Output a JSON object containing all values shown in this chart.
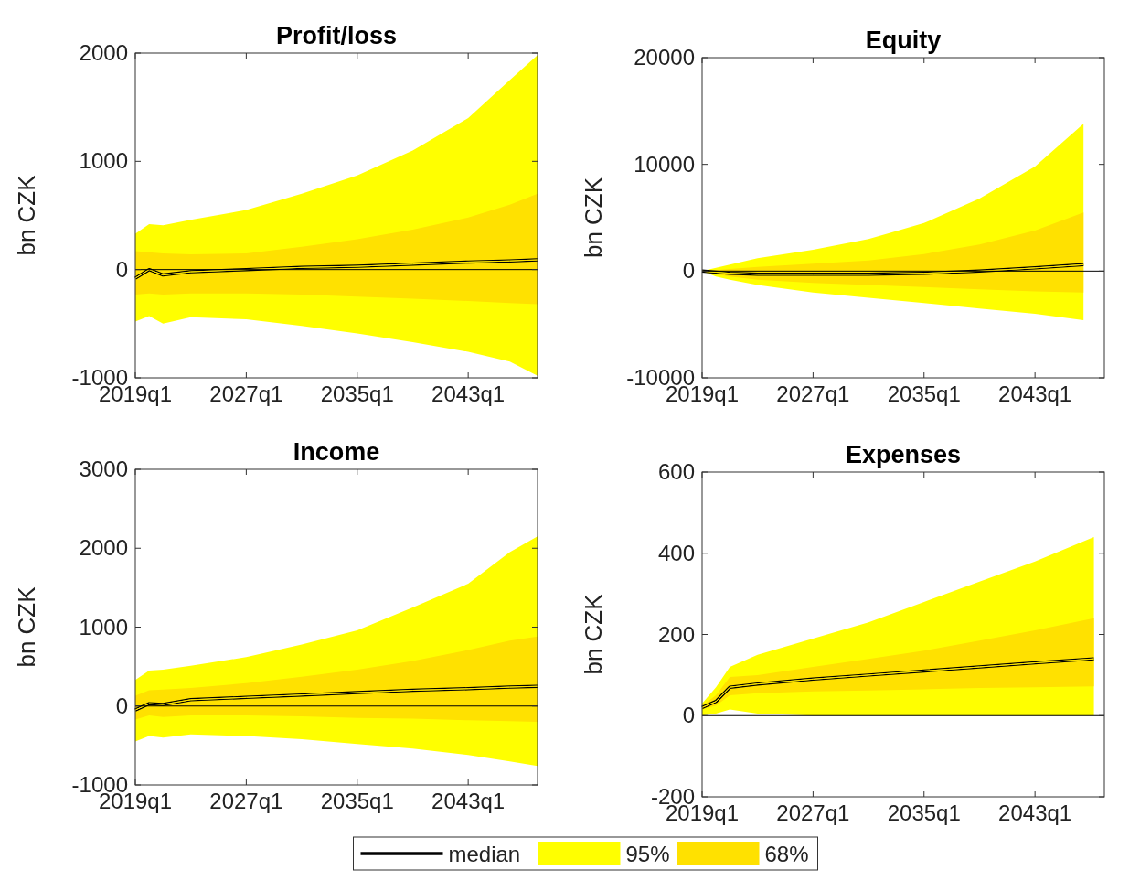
{
  "chart_data": [
    {
      "type": "line",
      "title": "Profit/loss",
      "ylabel": "bn CZK",
      "x": [
        "2019-01",
        "2020-01",
        "2021-01",
        "2023-01",
        "2027-01",
        "2031-01",
        "2035-01",
        "2039-01",
        "2043-01",
        "2046-01",
        "2048-01"
      ],
      "xlim": [
        "2019-01",
        "2048-01"
      ],
      "xticks": [
        {
          "value": "2019-01",
          "label": "2019q1"
        },
        {
          "value": "2027-01",
          "label": "2027q1"
        },
        {
          "value": "2035-01",
          "label": "2035q1"
        },
        {
          "value": "2043-01",
          "label": "2043q1"
        }
      ],
      "ylim": [
        -1000,
        2000
      ],
      "yticks": [
        -1000,
        0,
        1000,
        2000
      ],
      "ref_lines": [
        {
          "axis": "y",
          "value": 0,
          "color": "#000000"
        }
      ],
      "series": [
        {
          "color": "#000000",
          "values": [
            -80,
            0,
            -50,
            -20,
            0,
            20,
            30,
            50,
            70,
            80,
            90
          ]
        },
        {
          "color": "#ffff00",
          "values": [
            -80,
            0,
            -50,
            -20,
            0,
            20,
            30,
            50,
            70,
            80,
            90
          ],
          "lower": [
            -480,
            -430,
            -500,
            -440,
            -460,
            -520,
            -590,
            -670,
            -760,
            -850,
            -980
          ],
          "upper": [
            330,
            420,
            410,
            460,
            550,
            700,
            870,
            1100,
            1400,
            1750,
            1980
          ]
        },
        {
          "color": "#ffe100",
          "values": [
            -80,
            0,
            -50,
            -20,
            0,
            20,
            30,
            50,
            70,
            80,
            90
          ],
          "lower": [
            -230,
            -220,
            -230,
            -220,
            -220,
            -230,
            -250,
            -270,
            -290,
            -310,
            -320
          ],
          "upper": [
            170,
            160,
            150,
            140,
            150,
            210,
            280,
            370,
            480,
            600,
            700
          ]
        }
      ]
    },
    {
      "type": "line",
      "title": "Equity",
      "ylabel": "bn CZK",
      "x": [
        "2019-01",
        "2020-01",
        "2021-01",
        "2023-01",
        "2027-01",
        "2031-01",
        "2035-01",
        "2039-01",
        "2043-01",
        "2046-07"
      ],
      "xlim": [
        "2019-01",
        "2048-01"
      ],
      "xticks": [
        {
          "value": "2019-01",
          "label": "2019q1"
        },
        {
          "value": "2027-01",
          "label": "2027q1"
        },
        {
          "value": "2035-01",
          "label": "2035q1"
        },
        {
          "value": "2043-01",
          "label": "2043q1"
        }
      ],
      "ylim": [
        -10000,
        20000
      ],
      "yticks": [
        -10000,
        0,
        10000,
        20000
      ],
      "ref_lines": [
        {
          "axis": "y",
          "value": 0,
          "color": "#000000"
        }
      ],
      "series": [
        {
          "color": "#000000",
          "values": [
            0,
            -100,
            -200,
            -300,
            -300,
            -300,
            -200,
            0,
            300,
            600
          ]
        },
        {
          "color": "#ffff00",
          "values": [
            0,
            -100,
            -200,
            -300,
            -300,
            -300,
            -200,
            0,
            300,
            600
          ],
          "lower": [
            0,
            -500,
            -800,
            -1300,
            -2000,
            -2500,
            -3000,
            -3500,
            -4000,
            -4600
          ],
          "upper": [
            0,
            300,
            600,
            1200,
            2000,
            3000,
            4500,
            6800,
            9800,
            13800
          ]
        },
        {
          "color": "#ffe100",
          "values": [
            0,
            -100,
            -200,
            -300,
            -300,
            -300,
            -200,
            0,
            300,
            600
          ],
          "lower": [
            0,
            -300,
            -500,
            -800,
            -1100,
            -1300,
            -1500,
            -1700,
            -1900,
            -2000
          ],
          "upper": [
            0,
            100,
            200,
            400,
            700,
            1000,
            1600,
            2500,
            3800,
            5500
          ]
        }
      ]
    },
    {
      "type": "line",
      "title": "Income",
      "ylabel": "bn CZK",
      "x": [
        "2019-01",
        "2020-01",
        "2021-01",
        "2023-01",
        "2027-01",
        "2031-01",
        "2035-01",
        "2039-01",
        "2043-01",
        "2046-01",
        "2048-01"
      ],
      "xlim": [
        "2019-01",
        "2048-01"
      ],
      "xticks": [
        {
          "value": "2019-01",
          "label": "2019q1"
        },
        {
          "value": "2027-01",
          "label": "2027q1"
        },
        {
          "value": "2035-01",
          "label": "2035q1"
        },
        {
          "value": "2043-01",
          "label": "2043q1"
        }
      ],
      "ylim": [
        -1000,
        3000
      ],
      "yticks": [
        -1000,
        0,
        1000,
        2000,
        3000
      ],
      "ref_lines": [
        {
          "axis": "y",
          "value": 0,
          "color": "#000000"
        }
      ],
      "series": [
        {
          "color": "#000000",
          "values": [
            -50,
            30,
            20,
            80,
            110,
            140,
            170,
            200,
            220,
            240,
            250
          ]
        },
        {
          "color": "#ffff00",
          "values": [
            -50,
            30,
            20,
            80,
            110,
            140,
            170,
            200,
            220,
            240,
            250
          ],
          "lower": [
            -450,
            -380,
            -400,
            -360,
            -380,
            -420,
            -480,
            -540,
            -620,
            -700,
            -760
          ],
          "upper": [
            330,
            450,
            460,
            510,
            620,
            780,
            960,
            1250,
            1550,
            1950,
            2150
          ]
        },
        {
          "color": "#ffe100",
          "values": [
            -50,
            30,
            20,
            80,
            110,
            140,
            170,
            200,
            220,
            240,
            250
          ],
          "lower": [
            -170,
            -120,
            -140,
            -120,
            -120,
            -130,
            -150,
            -160,
            -180,
            -190,
            -200
          ],
          "upper": [
            130,
            200,
            210,
            230,
            290,
            370,
            460,
            570,
            710,
            830,
            880
          ]
        }
      ]
    },
    {
      "type": "line",
      "title": "Expenses",
      "ylabel": "bn CZK",
      "legend": "bottom",
      "x": [
        "2019-01",
        "2020-01",
        "2021-01",
        "2023-01",
        "2027-01",
        "2031-01",
        "2035-01",
        "2039-01",
        "2043-01",
        "2047-04"
      ],
      "xlim": [
        "2019-01",
        "2048-01"
      ],
      "xticks": [
        {
          "value": "2019-01",
          "label": "2019q1"
        },
        {
          "value": "2027-01",
          "label": "2027q1"
        },
        {
          "value": "2035-01",
          "label": "2035q1"
        },
        {
          "value": "2043-01",
          "label": "2043q1"
        }
      ],
      "ylim": [
        -200,
        600
      ],
      "yticks": [
        -200,
        0,
        200,
        400,
        600
      ],
      "ref_lines": [
        {
          "axis": "y",
          "value": 0,
          "color": "#000000"
        }
      ],
      "series": [
        {
          "name": "median",
          "color": "#000000",
          "values": [
            20,
            35,
            70,
            78,
            90,
            100,
            110,
            120,
            130,
            140
          ]
        },
        {
          "name": "95%",
          "color": "#ffff00",
          "values": [
            20,
            35,
            70,
            78,
            90,
            100,
            110,
            120,
            130,
            140
          ],
          "lower": [
            0,
            5,
            15,
            5,
            0,
            0,
            0,
            0,
            0,
            0
          ],
          "upper": [
            30,
            70,
            120,
            150,
            190,
            230,
            280,
            330,
            380,
            440
          ]
        },
        {
          "name": "68%",
          "color": "#ffe100",
          "values": [
            20,
            35,
            70,
            78,
            90,
            100,
            110,
            120,
            130,
            140
          ],
          "lower": [
            15,
            25,
            50,
            55,
            60,
            62,
            65,
            68,
            70,
            72
          ],
          "upper": [
            25,
            50,
            95,
            100,
            120,
            140,
            160,
            185,
            210,
            240
          ]
        }
      ]
    }
  ]
}
